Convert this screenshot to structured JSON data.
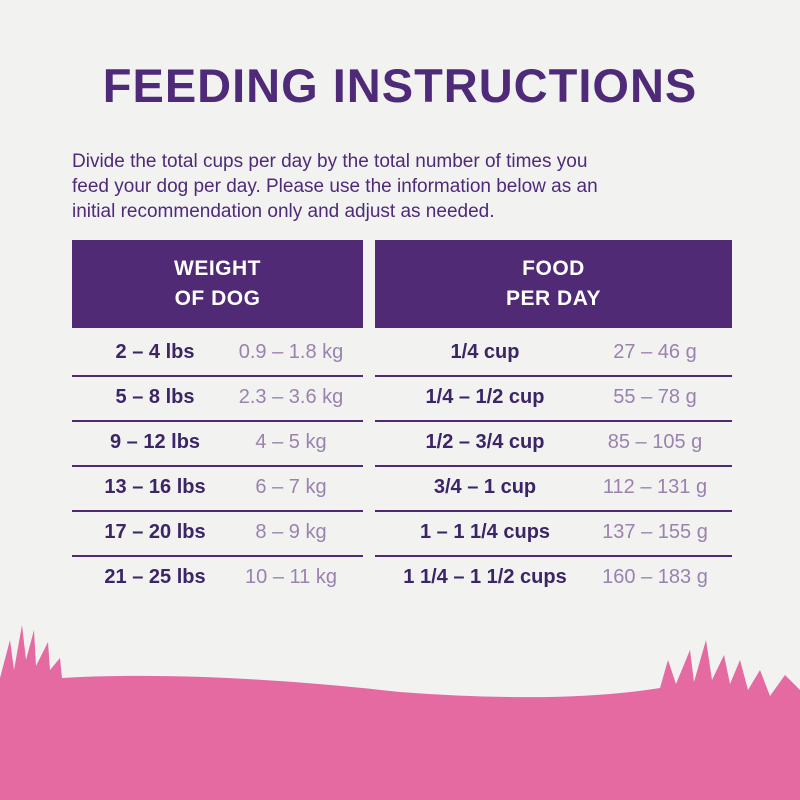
{
  "title": "FEEDING INSTRUCTIONS",
  "intro": [
    "Divide the total cups per day by the total number of times you",
    "feed your dog per day. Please use the information below as an",
    "initial recommendation only and adjust as needed."
  ],
  "table": {
    "headers": [
      [
        "WEIGHT",
        "OF DOG"
      ],
      [
        "FOOD",
        "PER DAY"
      ]
    ],
    "rows": [
      [
        "2 – 4 lbs",
        "0.9 – 1.8 kg",
        "1/4 cup",
        "27 – 46 g"
      ],
      [
        "5 – 8 lbs",
        "2.3 – 3.6 kg",
        "1/4 – 1/2 cup",
        "55 – 78 g"
      ],
      [
        "9 – 12 lbs",
        "4 – 5 kg",
        "1/2 – 3/4 cup",
        "85 – 105 g"
      ],
      [
        "13 – 16 lbs",
        "6 – 7 kg",
        "3/4 – 1 cup",
        "112 – 131 g"
      ],
      [
        "17 – 20 lbs",
        "8 – 9 kg",
        "1 – 1 1/4 cups",
        "137 – 155 g"
      ],
      [
        "21 – 25 lbs",
        "10 – 11 kg",
        "1 1/4 – 1 1/2 cups",
        "160 – 183 g"
      ]
    ]
  }
}
